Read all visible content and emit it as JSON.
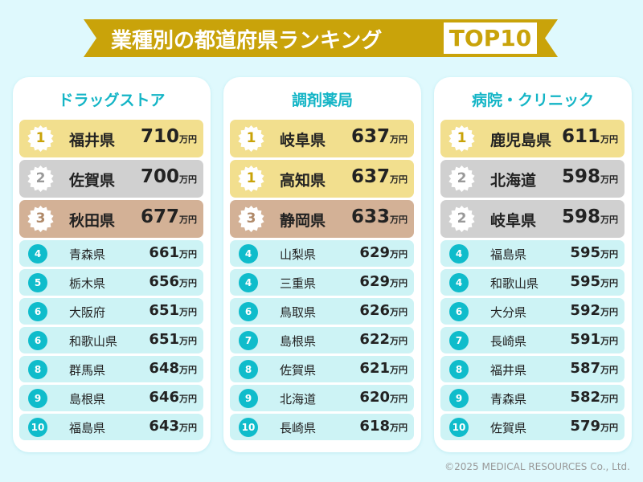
{
  "title": "業種別の都道府県ランキング",
  "badge": "TOP10",
  "unit": "万円",
  "colors": {
    "background": "#dff9fd",
    "ribbon": "#c9a30a",
    "accent": "#14b5c6",
    "gold": "#f2df8e",
    "silver": "#d0d0d0",
    "bronze": "#d3b196",
    "row": "#cdf3f5"
  },
  "columns": [
    {
      "title": "ドラッグストア",
      "rows": [
        {
          "rank": "1",
          "pref": "福井県",
          "value": "710"
        },
        {
          "rank": "2",
          "pref": "佐賀県",
          "value": "700"
        },
        {
          "rank": "3",
          "pref": "秋田県",
          "value": "677"
        },
        {
          "rank": "4",
          "pref": "青森県",
          "value": "661"
        },
        {
          "rank": "5",
          "pref": "栃木県",
          "value": "656"
        },
        {
          "rank": "6",
          "pref": "大阪府",
          "value": "651"
        },
        {
          "rank": "6",
          "pref": "和歌山県",
          "value": "651"
        },
        {
          "rank": "8",
          "pref": "群馬県",
          "value": "648"
        },
        {
          "rank": "9",
          "pref": "島根県",
          "value": "646"
        },
        {
          "rank": "10",
          "pref": "福島県",
          "value": "643"
        }
      ]
    },
    {
      "title": "調剤薬局",
      "rows": [
        {
          "rank": "1",
          "pref": "岐阜県",
          "value": "637"
        },
        {
          "rank": "1",
          "pref": "高知県",
          "value": "637"
        },
        {
          "rank": "3",
          "pref": "静岡県",
          "value": "633"
        },
        {
          "rank": "4",
          "pref": "山梨県",
          "value": "629"
        },
        {
          "rank": "4",
          "pref": "三重県",
          "value": "629"
        },
        {
          "rank": "6",
          "pref": "鳥取県",
          "value": "626"
        },
        {
          "rank": "7",
          "pref": "島根県",
          "value": "622"
        },
        {
          "rank": "8",
          "pref": "佐賀県",
          "value": "621"
        },
        {
          "rank": "9",
          "pref": "北海道",
          "value": "620"
        },
        {
          "rank": "10",
          "pref": "長崎県",
          "value": "618"
        }
      ]
    },
    {
      "title": "病院・クリニック",
      "rows": [
        {
          "rank": "1",
          "pref": "鹿児島県",
          "value": "611"
        },
        {
          "rank": "2",
          "pref": "北海道",
          "value": "598"
        },
        {
          "rank": "2",
          "pref": "岐阜県",
          "value": "598"
        },
        {
          "rank": "4",
          "pref": "福島県",
          "value": "595"
        },
        {
          "rank": "4",
          "pref": "和歌山県",
          "value": "595"
        },
        {
          "rank": "6",
          "pref": "大分県",
          "value": "592"
        },
        {
          "rank": "7",
          "pref": "長崎県",
          "value": "591"
        },
        {
          "rank": "8",
          "pref": "福井県",
          "value": "587"
        },
        {
          "rank": "9",
          "pref": "青森県",
          "value": "582"
        },
        {
          "rank": "10",
          "pref": "佐賀県",
          "value": "579"
        }
      ]
    }
  ],
  "copyright": "©2025 MEDICAL RESOURCES Co., Ltd."
}
